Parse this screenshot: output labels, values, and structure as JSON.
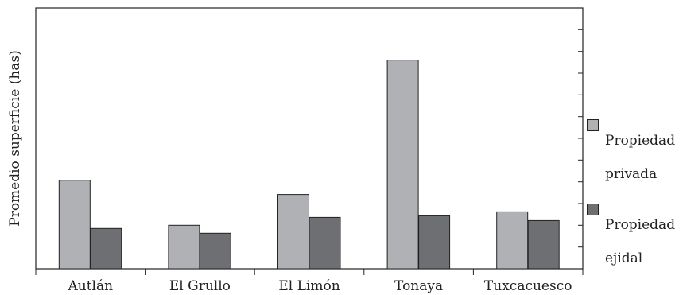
{
  "chart_data": {
    "type": "bar",
    "title": "",
    "xlabel": "",
    "ylabel": "Promedio superficie (has)",
    "categories": [
      "Autlán",
      "El Grullo",
      "El Limón",
      "Tonaya",
      "Tuxcacuesco"
    ],
    "series": [
      {
        "name": "Propiedad privada",
        "values": [
          112,
          55,
          94,
          264,
          72
        ],
        "color": "#b0b1b4"
      },
      {
        "name": "Propiedad ejidal",
        "values": [
          51,
          45,
          65,
          67,
          61
        ],
        "color": "#6e6f72"
      }
    ],
    "ylim": [
      0,
      330
    ],
    "grid": false,
    "legend_position": "right",
    "legend_labels": [
      {
        "line1": "Propiedad",
        "line2": "privada"
      },
      {
        "line1": "Propiedad",
        "line2": "ejidal"
      }
    ]
  }
}
